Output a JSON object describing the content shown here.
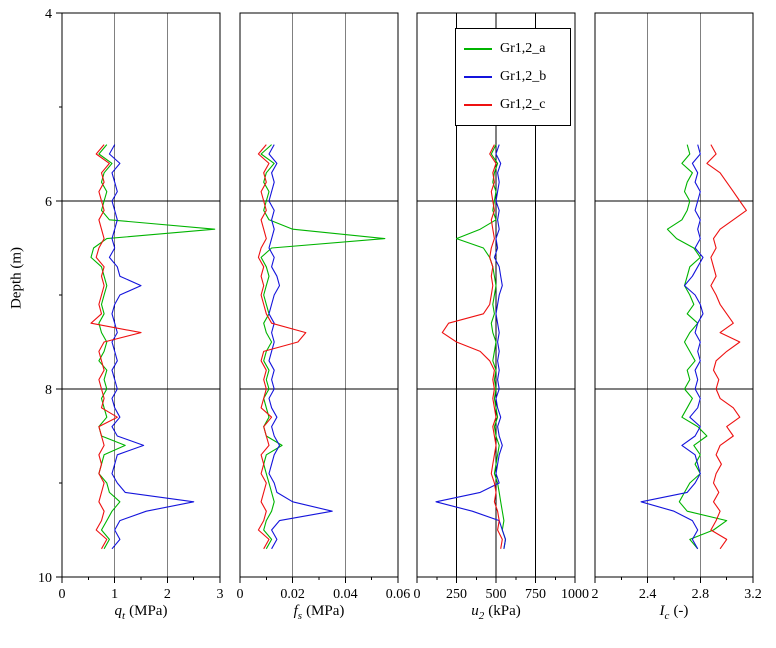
{
  "figure": {
    "y_axis": {
      "label": "Depth (m)",
      "min": 4,
      "max": 10,
      "tick_values": [
        4,
        6,
        8,
        10
      ],
      "tick_labels": [
        "4",
        "6",
        "8",
        "10"
      ],
      "minor_tick_values": [
        5,
        7,
        9
      ],
      "gridline_values": [
        6,
        8
      ]
    },
    "legend": {
      "entries": [
        {
          "label": "Gr1,2_a",
          "color": "#00b400"
        },
        {
          "label": "Gr1,2_b",
          "color": "#1414dc"
        },
        {
          "label": "Gr1,2_c",
          "color": "#ee1111"
        }
      ]
    }
  },
  "chart_data": {
    "type": "line",
    "description": "CPT depth profiles, four panels sharing inverted depth axis 4-10 m",
    "grid": true,
    "legend_position": "top, over third panel",
    "depths": [
      5.4,
      5.5,
      5.6,
      5.7,
      5.8,
      5.9,
      6.0,
      6.1,
      6.2,
      6.3,
      6.4,
      6.5,
      6.6,
      6.7,
      6.8,
      6.9,
      7.0,
      7.1,
      7.2,
      7.3,
      7.4,
      7.5,
      7.6,
      7.7,
      7.8,
      7.9,
      8.0,
      8.1,
      8.2,
      8.3,
      8.4,
      8.5,
      8.6,
      8.7,
      8.8,
      8.9,
      9.0,
      9.1,
      9.2,
      9.3,
      9.4,
      9.5,
      9.6,
      9.7
    ],
    "panels": [
      {
        "x_label": {
          "var": "q",
          "sub": "t",
          "unit": "(MPa)"
        },
        "x_range": [
          0,
          3
        ],
        "x_tick_values": [
          0,
          1,
          2,
          3
        ],
        "x_tick_labels": [
          "0",
          "1",
          "2",
          "3"
        ],
        "x_minor_tick_values": [
          0.5,
          1.5,
          2.5
        ],
        "x_gridline_values": [
          1,
          2
        ],
        "series": [
          {
            "name": "Gr1,2_a",
            "color": "#00b400",
            "values": [
              0.85,
              0.7,
              0.95,
              0.8,
              0.75,
              0.85,
              0.8,
              0.75,
              0.9,
              2.9,
              0.85,
              0.6,
              0.55,
              0.75,
              0.8,
              0.85,
              0.8,
              0.75,
              0.8,
              0.7,
              0.75,
              0.85,
              0.8,
              0.7,
              0.85,
              0.8,
              0.85,
              0.75,
              0.8,
              0.85,
              0.7,
              0.75,
              1.2,
              0.8,
              0.75,
              0.7,
              0.85,
              0.9,
              1.1,
              0.95,
              0.85,
              0.75,
              0.9,
              0.8
            ]
          },
          {
            "name": "Gr1,2_b",
            "color": "#1414dc",
            "values": [
              1.0,
              0.9,
              1.1,
              0.95,
              1.0,
              1.05,
              0.95,
              1.0,
              1.05,
              1.0,
              0.95,
              1.0,
              0.9,
              1.05,
              1.1,
              1.5,
              1.1,
              1.0,
              0.95,
              1.0,
              1.05,
              0.95,
              1.0,
              1.05,
              0.95,
              1.0,
              1.05,
              0.95,
              1.0,
              1.1,
              0.95,
              1.05,
              1.55,
              1.05,
              1.0,
              0.95,
              1.05,
              1.2,
              2.5,
              1.6,
              1.1,
              1.0,
              1.1,
              0.95
            ]
          },
          {
            "name": "Gr1,2_c",
            "color": "#ee1111",
            "values": [
              0.8,
              0.65,
              0.9,
              0.75,
              0.8,
              0.7,
              0.75,
              0.8,
              0.7,
              0.75,
              0.8,
              0.7,
              0.65,
              0.8,
              0.75,
              0.8,
              0.75,
              0.7,
              0.75,
              0.55,
              1.5,
              0.8,
              0.7,
              0.75,
              0.8,
              0.7,
              0.75,
              0.8,
              0.75,
              1.05,
              0.7,
              0.75,
              0.8,
              0.7,
              0.75,
              0.7,
              0.8,
              0.75,
              0.7,
              0.8,
              0.75,
              0.65,
              0.85,
              0.75
            ]
          }
        ]
      },
      {
        "x_label": {
          "var": "f",
          "sub": "s",
          "unit": "(MPa)"
        },
        "x_range": [
          0,
          0.06
        ],
        "x_tick_values": [
          0,
          0.02,
          0.04,
          0.06
        ],
        "x_tick_labels": [
          "0",
          "0.02",
          "0.04",
          "0.06"
        ],
        "x_minor_tick_values": [
          0.01,
          0.03,
          0.05
        ],
        "x_gridline_values": [
          0.02,
          0.04
        ],
        "series": [
          {
            "name": "Gr1,2_a",
            "color": "#00b400",
            "values": [
              0.012,
              0.008,
              0.013,
              0.01,
              0.009,
              0.011,
              0.01,
              0.009,
              0.011,
              0.02,
              0.055,
              0.012,
              0.008,
              0.01,
              0.011,
              0.01,
              0.009,
              0.01,
              0.011,
              0.009,
              0.01,
              0.012,
              0.01,
              0.009,
              0.011,
              0.01,
              0.011,
              0.009,
              0.01,
              0.011,
              0.009,
              0.01,
              0.016,
              0.01,
              0.009,
              0.01,
              0.011,
              0.012,
              0.013,
              0.012,
              0.01,
              0.009,
              0.012,
              0.01
            ]
          },
          {
            "name": "Gr1,2_b",
            "color": "#1414dc",
            "values": [
              0.013,
              0.011,
              0.014,
              0.012,
              0.013,
              0.012,
              0.011,
              0.013,
              0.012,
              0.013,
              0.012,
              0.011,
              0.013,
              0.012,
              0.014,
              0.015,
              0.013,
              0.012,
              0.011,
              0.013,
              0.012,
              0.013,
              0.012,
              0.011,
              0.013,
              0.012,
              0.013,
              0.011,
              0.012,
              0.014,
              0.012,
              0.013,
              0.015,
              0.013,
              0.012,
              0.011,
              0.013,
              0.014,
              0.02,
              0.035,
              0.015,
              0.012,
              0.014,
              0.012
            ]
          },
          {
            "name": "Gr1,2_c",
            "color": "#ee1111",
            "values": [
              0.01,
              0.007,
              0.011,
              0.009,
              0.01,
              0.008,
              0.009,
              0.01,
              0.008,
              0.009,
              0.01,
              0.008,
              0.007,
              0.009,
              0.008,
              0.009,
              0.008,
              0.009,
              0.01,
              0.012,
              0.025,
              0.022,
              0.009,
              0.008,
              0.01,
              0.009,
              0.01,
              0.009,
              0.008,
              0.012,
              0.009,
              0.01,
              0.011,
              0.008,
              0.009,
              0.008,
              0.01,
              0.009,
              0.008,
              0.01,
              0.009,
              0.007,
              0.011,
              0.009
            ]
          }
        ]
      },
      {
        "x_label": {
          "var": "u",
          "sub": "2",
          "unit": "(kPa)"
        },
        "x_range": [
          0,
          1000
        ],
        "x_tick_values": [
          0,
          250,
          500,
          750,
          1000
        ],
        "x_tick_labels": [
          "0",
          "250",
          "500",
          "750",
          "1000"
        ],
        "x_minor_tick_values": [
          125,
          375,
          625,
          875
        ],
        "x_gridline_values": [
          250,
          500,
          750
        ],
        "series": [
          {
            "name": "Gr1,2_a",
            "color": "#00b400",
            "values": [
              500,
              470,
              510,
              490,
              480,
              500,
              490,
              480,
              500,
              400,
              250,
              420,
              460,
              480,
              490,
              500,
              490,
              480,
              490,
              470,
              480,
              500,
              490,
              480,
              500,
              490,
              500,
              490,
              500,
              510,
              490,
              500,
              520,
              510,
              500,
              490,
              510,
              520,
              530,
              540,
              550,
              540,
              560,
              550
            ]
          },
          {
            "name": "Gr1,2_b",
            "color": "#1414dc",
            "values": [
              520,
              500,
              530,
              510,
              520,
              510,
              500,
              520,
              510,
              520,
              500,
              510,
              490,
              520,
              530,
              540,
              520,
              510,
              500,
              510,
              520,
              510,
              520,
              510,
              520,
              510,
              520,
              500,
              510,
              530,
              510,
              520,
              540,
              520,
              510,
              500,
              520,
              400,
              120,
              350,
              520,
              540,
              560,
              550
            ]
          },
          {
            "name": "Gr1,2_c",
            "color": "#ee1111",
            "values": [
              490,
              460,
              500,
              480,
              490,
              470,
              480,
              490,
              470,
              480,
              490,
              470,
              460,
              480,
              470,
              480,
              470,
              460,
              420,
              200,
              160,
              250,
              400,
              460,
              490,
              480,
              490,
              480,
              490,
              500,
              480,
              490,
              500,
              490,
              480,
              470,
              490,
              500,
              490,
              510,
              520,
              510,
              540,
              530
            ]
          }
        ]
      },
      {
        "x_label": {
          "var": "I",
          "sub": "c",
          "unit": "(-)"
        },
        "x_range": [
          2,
          3.2
        ],
        "x_tick_values": [
          2,
          2.4,
          2.8,
          3.2
        ],
        "x_tick_labels": [
          "2",
          "2.4",
          "2.8",
          "3.2"
        ],
        "x_minor_tick_values": [
          2.2,
          2.6,
          3.0
        ],
        "x_gridline_values": [
          2.4,
          2.8
        ],
        "series": [
          {
            "name": "Gr1,2_a",
            "color": "#00b400",
            "values": [
              2.7,
              2.72,
              2.66,
              2.74,
              2.7,
              2.68,
              2.72,
              2.7,
              2.66,
              2.55,
              2.62,
              2.75,
              2.8,
              2.72,
              2.7,
              2.68,
              2.72,
              2.75,
              2.7,
              2.78,
              2.72,
              2.68,
              2.72,
              2.76,
              2.7,
              2.72,
              2.68,
              2.74,
              2.7,
              2.66,
              2.78,
              2.85,
              2.75,
              2.8,
              2.76,
              2.8,
              2.72,
              2.68,
              2.64,
              2.7,
              3.0,
              2.9,
              2.72,
              2.78
            ]
          },
          {
            "name": "Gr1,2_b",
            "color": "#1414dc",
            "values": [
              2.78,
              2.8,
              2.74,
              2.78,
              2.76,
              2.8,
              2.78,
              2.76,
              2.8,
              2.78,
              2.8,
              2.76,
              2.82,
              2.78,
              2.74,
              2.68,
              2.76,
              2.8,
              2.82,
              2.78,
              2.76,
              2.8,
              2.78,
              2.8,
              2.76,
              2.78,
              2.76,
              2.8,
              2.78,
              2.72,
              2.8,
              2.76,
              2.66,
              2.76,
              2.78,
              2.8,
              2.76,
              2.7,
              2.35,
              2.6,
              2.74,
              2.78,
              2.74,
              2.78
            ]
          },
          {
            "name": "Gr1,2_c",
            "color": "#ee1111",
            "values": [
              2.88,
              2.92,
              2.85,
              2.95,
              3.0,
              3.05,
              3.1,
              3.15,
              3.05,
              2.95,
              2.9,
              2.92,
              2.88,
              2.9,
              2.92,
              2.88,
              2.92,
              2.95,
              3.0,
              3.05,
              2.95,
              3.1,
              3.0,
              2.92,
              2.9,
              2.94,
              2.92,
              2.95,
              3.05,
              3.1,
              3.0,
              3.05,
              2.95,
              2.92,
              2.96,
              2.92,
              2.9,
              2.94,
              2.9,
              2.95,
              2.92,
              2.88,
              3.0,
              2.95
            ]
          }
        ]
      }
    ]
  }
}
